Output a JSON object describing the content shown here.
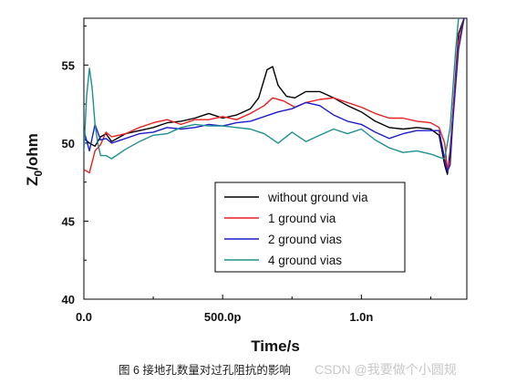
{
  "chart_data": {
    "type": "line",
    "xlabel": "Time/s",
    "ylabel_main": "Z",
    "ylabel_sub": "0",
    "ylabel_suffix": "/ohm",
    "xlim": [
      0,
      1.38e-09
    ],
    "ylim": [
      40,
      58
    ],
    "x_ticks": [
      {
        "value": 0,
        "label": "0.0"
      },
      {
        "value": 5e-10,
        "label": "500.0p"
      },
      {
        "value": 1e-09,
        "label": "1.0n"
      }
    ],
    "y_ticks": [
      {
        "value": 40,
        "label": "40"
      },
      {
        "value": 45,
        "label": "45"
      },
      {
        "value": 50,
        "label": "50"
      },
      {
        "value": 55,
        "label": "55"
      }
    ],
    "legend_position": "lower-right",
    "series": [
      {
        "name": "without ground via",
        "color": "#000000",
        "x": [
          0,
          2e-11,
          4e-11,
          6e-11,
          8e-11,
          1e-10,
          1.5e-10,
          2e-10,
          2.5e-10,
          3e-10,
          3.5e-10,
          4e-10,
          4.5e-10,
          5e-10,
          5.5e-10,
          6e-10,
          6.3e-10,
          6.6e-10,
          6.8e-10,
          7e-10,
          7.3e-10,
          7.6e-10,
          8e-10,
          8.5e-10,
          9e-10,
          9.5e-10,
          1e-09,
          1.05e-09,
          1.1e-09,
          1.15e-09,
          1.2e-09,
          1.25e-09,
          1.28e-09,
          1.3e-09,
          1.31e-09,
          1.32e-09,
          1.33e-09,
          1.35e-09,
          1.37e-09
        ],
        "values": [
          50.3,
          50.0,
          49.8,
          50.4,
          50.6,
          50.1,
          50.6,
          50.8,
          51.0,
          51.3,
          51.4,
          51.6,
          51.9,
          51.6,
          51.8,
          52.2,
          52.9,
          54.7,
          54.9,
          53.7,
          53.0,
          52.9,
          53.3,
          53.3,
          52.9,
          52.4,
          52.0,
          51.4,
          51.0,
          50.9,
          51.0,
          50.9,
          50.5,
          48.6,
          48.0,
          49.5,
          52.0,
          57.0,
          58.0
        ]
      },
      {
        "name": "1 ground via",
        "color": "#e82020",
        "x": [
          0,
          2e-11,
          4e-11,
          6e-11,
          8e-11,
          1e-10,
          1.5e-10,
          2e-10,
          2.5e-10,
          3e-10,
          3.5e-10,
          4e-10,
          4.5e-10,
          5e-10,
          5.5e-10,
          6e-10,
          6.5e-10,
          6.8e-10,
          7.2e-10,
          7.6e-10,
          8e-10,
          8.5e-10,
          9e-10,
          9.5e-10,
          1e-09,
          1.05e-09,
          1.1e-09,
          1.15e-09,
          1.2e-09,
          1.25e-09,
          1.28e-09,
          1.3e-09,
          1.31e-09,
          1.32e-09,
          1.33e-09,
          1.35e-09,
          1.37e-09
        ],
        "values": [
          48.3,
          48.1,
          49.5,
          49.9,
          50.7,
          50.4,
          50.6,
          51.0,
          51.3,
          51.5,
          51.2,
          51.5,
          51.5,
          51.7,
          51.5,
          51.9,
          52.4,
          52.9,
          52.7,
          52.3,
          52.6,
          52.8,
          52.9,
          52.6,
          52.3,
          51.9,
          51.6,
          51.6,
          51.4,
          51.3,
          51.0,
          50.0,
          48.3,
          49.0,
          52.0,
          56.5,
          58.0
        ]
      },
      {
        "name": "2 ground vias",
        "color": "#1c1ccc",
        "x": [
          0,
          2e-11,
          4e-11,
          6e-11,
          8e-11,
          1e-10,
          1.5e-10,
          2e-10,
          2.5e-10,
          3e-10,
          3.5e-10,
          4e-10,
          4.5e-10,
          5e-10,
          5.5e-10,
          6e-10,
          6.5e-10,
          7e-10,
          7.5e-10,
          8e-10,
          8.5e-10,
          9e-10,
          9.5e-10,
          1e-09,
          1.05e-09,
          1.1e-09,
          1.15e-09,
          1.2e-09,
          1.25e-09,
          1.28e-09,
          1.3e-09,
          1.31e-09,
          1.32e-09,
          1.33e-09,
          1.35e-09,
          1.37e-09
        ],
        "values": [
          50.8,
          49.5,
          51.2,
          50.2,
          50.3,
          50.0,
          50.3,
          50.6,
          50.7,
          51.0,
          50.9,
          51.0,
          51.2,
          51.1,
          51.3,
          51.4,
          51.7,
          52.0,
          52.2,
          52.6,
          52.4,
          51.8,
          51.4,
          51.2,
          50.7,
          50.3,
          50.6,
          50.8,
          50.8,
          50.8,
          49.0,
          48.2,
          48.6,
          51.5,
          56.0,
          58.0
        ]
      },
      {
        "name": "4 ground vias",
        "color": "#1e8f8f",
        "x": [
          0,
          1e-11,
          2e-11,
          3e-11,
          4e-11,
          5e-11,
          6e-11,
          8e-11,
          1e-10,
          1.5e-10,
          2e-10,
          2.5e-10,
          3e-10,
          3.5e-10,
          4e-10,
          4.5e-10,
          5e-10,
          5.5e-10,
          6e-10,
          6.5e-10,
          7e-10,
          7.5e-10,
          8e-10,
          8.5e-10,
          9e-10,
          9.5e-10,
          1e-09,
          1.05e-09,
          1.1e-09,
          1.15e-09,
          1.2e-09,
          1.25e-09,
          1.28e-09,
          1.3e-09,
          1.32e-09,
          1.34e-09,
          1.35e-09
        ],
        "values": [
          49.5,
          53.0,
          54.8,
          53.5,
          51.2,
          50.0,
          49.2,
          49.2,
          49.0,
          49.6,
          50.1,
          50.5,
          50.6,
          51.0,
          51.2,
          51.1,
          51.1,
          51.0,
          50.9,
          50.6,
          50.0,
          50.7,
          50.1,
          50.5,
          50.9,
          50.6,
          50.9,
          50.2,
          49.7,
          49.4,
          49.5,
          49.3,
          49.1,
          49.0,
          51.0,
          56.0,
          58.0
        ]
      }
    ]
  },
  "caption": "图 6 接地孔数量对过孔阻抗的影响",
  "watermark": "CSDN @我要做个小圆规"
}
